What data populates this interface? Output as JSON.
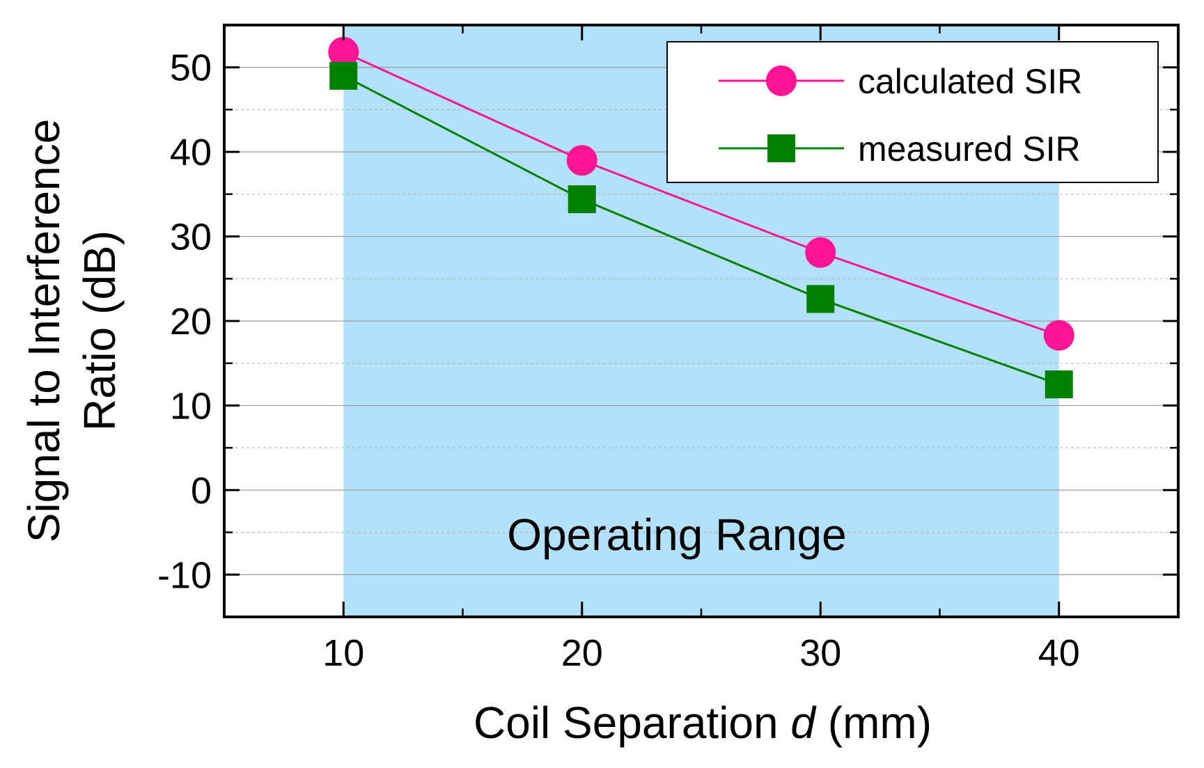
{
  "chart_data": {
    "type": "line",
    "x": [
      10,
      20,
      30,
      40
    ],
    "series": [
      {
        "name": "calculated SIR",
        "values": [
          51.8,
          39.0,
          28.1,
          18.3
        ],
        "color": "#ff1493",
        "marker": "circle"
      },
      {
        "name": "measured SIR",
        "values": [
          49.0,
          34.4,
          22.6,
          12.5
        ],
        "color": "#008000",
        "marker": "square"
      }
    ],
    "xlim": [
      5,
      45
    ],
    "ylim": [
      -15,
      55
    ],
    "xticks": [
      10,
      20,
      30,
      40
    ],
    "yticks": [
      -10,
      0,
      10,
      20,
      30,
      40,
      50
    ],
    "xlabel_prefix": "Coil Separation ",
    "xlabel_var": "d",
    "xlabel_unit": " (mm)",
    "ylabel_line1": "Signal to Interference",
    "ylabel_line2": "Ratio (dB)",
    "shaded_region": {
      "x_from": 10,
      "x_to": 40,
      "label": "Operating Range",
      "color": "#b3e0fa"
    },
    "grid": "horizontal at major y ticks",
    "legend_position": "top-right"
  }
}
